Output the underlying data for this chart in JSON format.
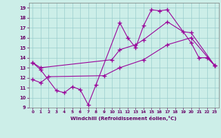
{
  "xlabel": "Windchill (Refroidissement éolien,°C)",
  "bg_color": "#cceee8",
  "line_color": "#990099",
  "grid_color": "#99cccc",
  "xlim": [
    -0.5,
    23.5
  ],
  "ylim": [
    9,
    19.5
  ],
  "xticks": [
    0,
    1,
    2,
    3,
    4,
    5,
    6,
    7,
    8,
    9,
    10,
    11,
    12,
    13,
    14,
    15,
    16,
    17,
    18,
    19,
    20,
    21,
    22,
    23
  ],
  "yticks": [
    9,
    10,
    11,
    12,
    13,
    14,
    15,
    16,
    17,
    18,
    19
  ],
  "line1_x": [
    0,
    1,
    3,
    4,
    5,
    6,
    7,
    8,
    11,
    12,
    13,
    14,
    15,
    16,
    17,
    20,
    21,
    22,
    23
  ],
  "line1_y": [
    13.5,
    12.8,
    10.7,
    10.5,
    11.1,
    10.8,
    9.3,
    11.3,
    17.5,
    16.0,
    15.0,
    17.2,
    18.8,
    18.7,
    18.8,
    15.5,
    14.0,
    14.0,
    13.2
  ],
  "line2_x": [
    0,
    1,
    10,
    11,
    13,
    14,
    17,
    19,
    20,
    23
  ],
  "line2_y": [
    13.5,
    13.0,
    13.8,
    14.8,
    15.3,
    15.8,
    17.6,
    16.6,
    16.5,
    13.2
  ],
  "line3_x": [
    0,
    1,
    2,
    9,
    11,
    14,
    17,
    20,
    23
  ],
  "line3_y": [
    11.8,
    11.5,
    12.1,
    12.2,
    13.0,
    13.8,
    15.3,
    16.0,
    13.2
  ]
}
